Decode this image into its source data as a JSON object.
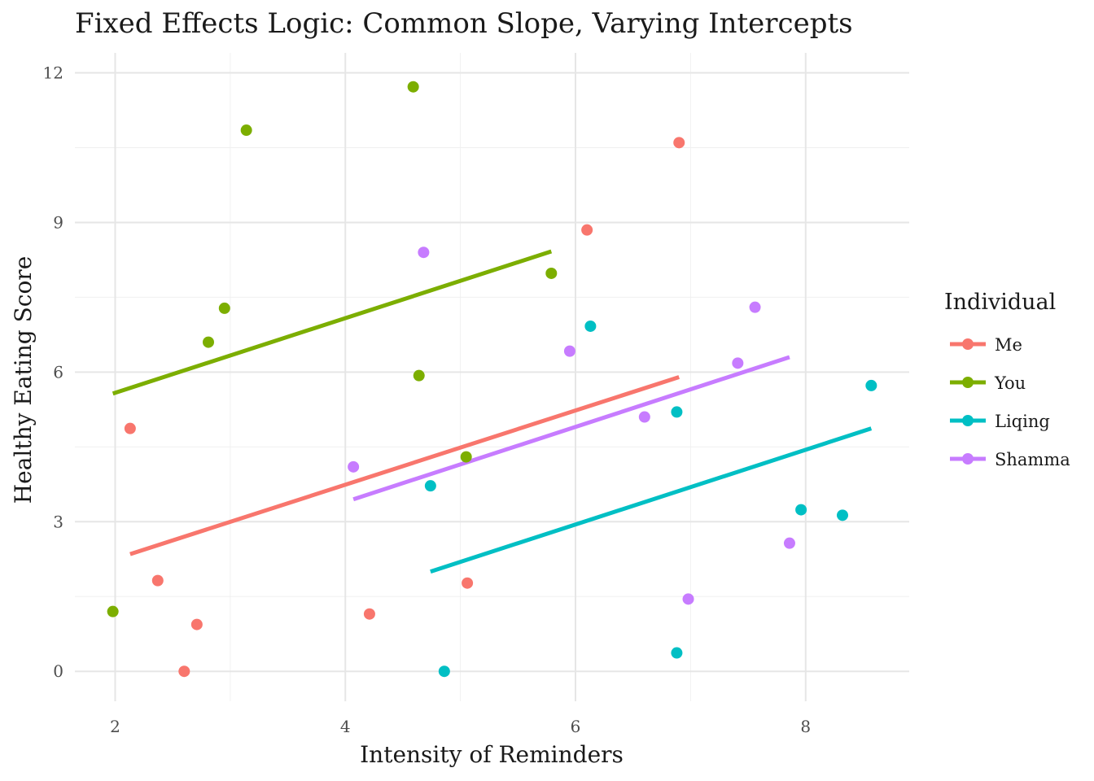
{
  "chart_data": {
    "type": "scatter",
    "title": "Fixed Effects Logic: Common Slope, Varying Intercepts",
    "xlabel": "Intensity of Reminders",
    "ylabel": "Healthy Eating Score",
    "xlim": [
      1.65,
      8.9
    ],
    "ylim": [
      -0.6,
      12.4
    ],
    "xticks": [
      2,
      4,
      6,
      8
    ],
    "yticks": [
      0,
      3,
      6,
      9,
      12
    ],
    "grid": true,
    "legend": {
      "title": "Individual",
      "position": "right"
    },
    "series": [
      {
        "name": "Me",
        "color": "#F8766D",
        "points": [
          [
            2.13,
            4.87
          ],
          [
            2.37,
            1.82
          ],
          [
            2.6,
            0.0
          ],
          [
            2.71,
            0.94
          ],
          [
            4.21,
            1.15
          ],
          [
            5.06,
            1.77
          ],
          [
            6.1,
            8.85
          ],
          [
            6.9,
            10.6
          ]
        ],
        "fit": [
          [
            2.13,
            2.35
          ],
          [
            6.9,
            5.9
          ]
        ]
      },
      {
        "name": "You",
        "color": "#7CAE00",
        "points": [
          [
            1.98,
            1.2
          ],
          [
            2.81,
            6.6
          ],
          [
            2.95,
            7.28
          ],
          [
            3.14,
            10.85
          ],
          [
            4.59,
            11.72
          ],
          [
            4.64,
            5.93
          ],
          [
            5.05,
            4.3
          ],
          [
            5.79,
            7.98
          ]
        ],
        "fit": [
          [
            1.98,
            5.57
          ],
          [
            5.79,
            8.42
          ]
        ]
      },
      {
        "name": "Liqing",
        "color": "#00BFC4",
        "points": [
          [
            4.74,
            3.72
          ],
          [
            4.86,
            0.0
          ],
          [
            6.13,
            6.92
          ],
          [
            6.88,
            5.2
          ],
          [
            6.88,
            0.37
          ],
          [
            7.96,
            3.24
          ],
          [
            8.32,
            3.13
          ],
          [
            8.57,
            5.73
          ]
        ],
        "fit": [
          [
            4.74,
            2.0
          ],
          [
            8.57,
            4.87
          ]
        ]
      },
      {
        "name": "Shamma",
        "color": "#C77CFF",
        "points": [
          [
            4.07,
            4.1
          ],
          [
            4.68,
            8.4
          ],
          [
            5.95,
            6.42
          ],
          [
            6.6,
            5.1
          ],
          [
            6.98,
            1.45
          ],
          [
            7.41,
            6.18
          ],
          [
            7.56,
            7.3
          ],
          [
            7.86,
            2.57
          ]
        ],
        "fit": [
          [
            4.07,
            3.45
          ],
          [
            7.86,
            6.3
          ]
        ]
      }
    ]
  }
}
